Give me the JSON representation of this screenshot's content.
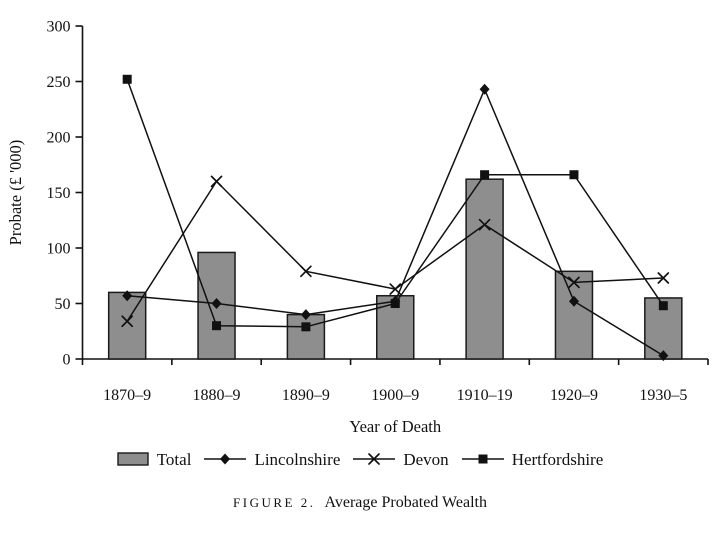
{
  "figure": {
    "caption_label": "FIGURE 2.",
    "caption_title": "Average Probated Wealth"
  },
  "chart_data": {
    "type": "bar",
    "subtype": "bar-line-combo",
    "title": "Average Probated Wealth",
    "categories": [
      "1870–9",
      "1880–9",
      "1890–9",
      "1900–9",
      "1910–19",
      "1920–9",
      "1930–5"
    ],
    "series": [
      {
        "name": "Total",
        "render": "bar",
        "marker": "none",
        "values": [
          60,
          96,
          40,
          57,
          162,
          79,
          55
        ]
      },
      {
        "name": "Lincolnshire",
        "render": "line",
        "marker": "diamond",
        "values": [
          57,
          50,
          40,
          52,
          243,
          52,
          3
        ]
      },
      {
        "name": "Devon",
        "render": "line",
        "marker": "x",
        "values": [
          34,
          160,
          79,
          63,
          121,
          69,
          73
        ]
      },
      {
        "name": "Hertfordshire",
        "render": "line",
        "marker": "square",
        "values": [
          252,
          30,
          29,
          50,
          166,
          166,
          48
        ]
      }
    ],
    "xlabel": "Year of Death",
    "ylabel": "Probate (£ '000)",
    "ylim": [
      0,
      300
    ],
    "ytick_step": 50,
    "grid": false,
    "legend_position": "bottom",
    "colors": {
      "bar_fill": "#8e8e8e",
      "bar_stroke": "#1a1a1a",
      "line": "#111111",
      "text": "#111111",
      "background": "#ffffff"
    }
  }
}
